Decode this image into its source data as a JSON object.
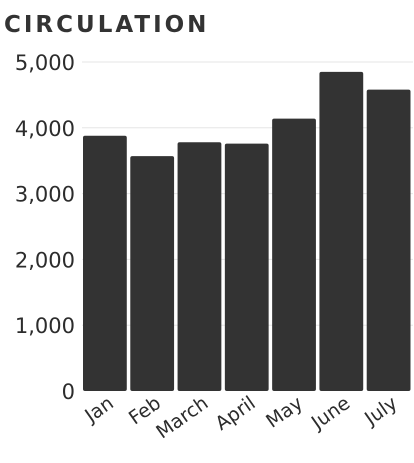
{
  "chart_data": {
    "type": "bar",
    "title": "CIRCULATION",
    "xlabel": "",
    "ylabel": "",
    "categories": [
      "Jan",
      "Feb",
      "March",
      "April",
      "May",
      "June",
      "July"
    ],
    "values": [
      3880,
      3570,
      3780,
      3760,
      4140,
      4850,
      4580
    ],
    "ylim": [
      0,
      5000
    ],
    "yticks": [
      "0",
      "1,000",
      "2,000",
      "3,000",
      "4,000",
      "5,000"
    ],
    "ytick_values": [
      0,
      1000,
      2000,
      3000,
      4000,
      5000
    ],
    "grid": true,
    "legend": "none",
    "colors": {
      "bar": "#333333",
      "grid": "#e6e6e6",
      "text": "#2c2c2c"
    }
  }
}
